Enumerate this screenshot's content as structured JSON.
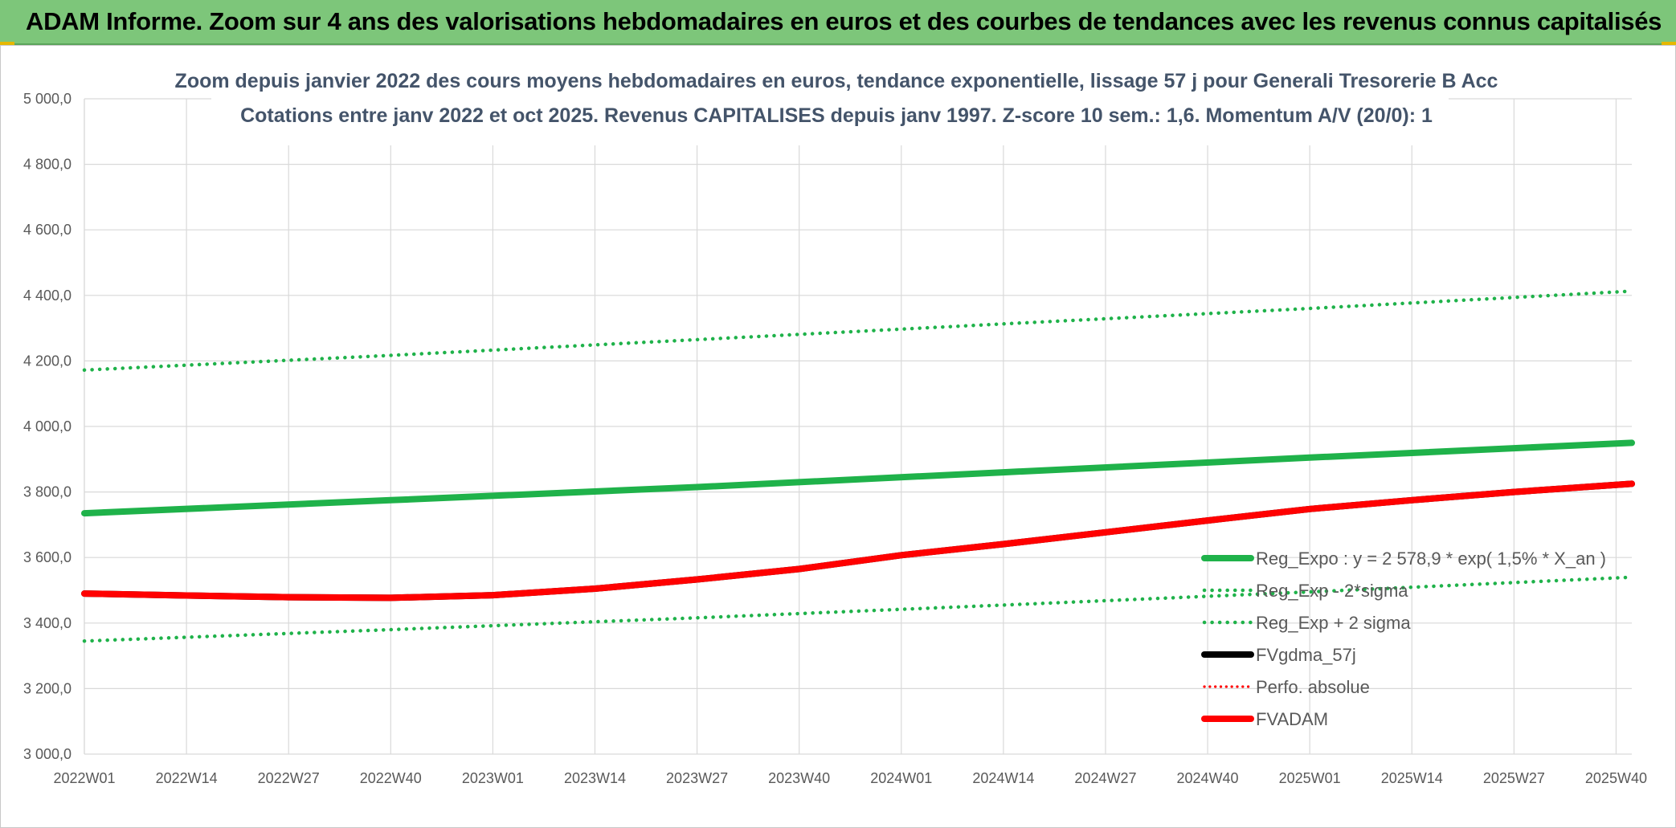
{
  "page": {
    "banner_title": "ADAM Informe. Zoom sur 4 ans des valorisations hebdomadaires en euros et des courbes de tendances avec les revenus connus capitalisés"
  },
  "chart_data": {
    "type": "line",
    "title": "Zoom depuis janvier 2022 des cours moyens hebdomadaires en euros, tendance exponentielle, lissage 57 j pour Generali Tresorerie B Acc",
    "subtitle": "Cotations entre janv 2022 et oct 2025. Revenus CAPITALISES depuis janv 1997. Z-score 10 sem.: 1,6. Momentum A/V (20/0): 1",
    "xlabel": "",
    "ylabel": "",
    "ylim": [
      3000,
      5000
    ],
    "yticks": [
      3000,
      3200,
      3400,
      3600,
      3800,
      4000,
      4200,
      4400,
      4600,
      4800,
      5000
    ],
    "ytick_labels": [
      "3 000,0",
      "3 200,0",
      "3 400,0",
      "3 600,0",
      "3 800,0",
      "4 000,0",
      "4 200,0",
      "4 400,0",
      "4 600,0",
      "4 800,0",
      "5 000,0"
    ],
    "x_range": [
      "2022W01",
      "2025W42"
    ],
    "x_ticks": [
      "2022W01",
      "2022W14",
      "2022W27",
      "2022W40",
      "2023W01",
      "2023W14",
      "2023W27",
      "2023W40",
      "2024W01",
      "2024W14",
      "2024W27",
      "2024W40",
      "2025W01",
      "2025W14",
      "2025W27",
      "2025W40"
    ],
    "grid": true,
    "legend_position": "bottom-right",
    "series": [
      {
        "name": "Reg_Expo : y = 2 578,9 * exp( 1,5% * X_an )",
        "color": "#1fb24a",
        "style": "solid",
        "width": "thick",
        "x": [
          "2022W01",
          "2022W40",
          "2023W27",
          "2024W14",
          "2025W01",
          "2025W42"
        ],
        "y": [
          3735,
          3775,
          3815,
          3860,
          3905,
          3950
        ]
      },
      {
        "name": "Reg_Exp - 2*sigma",
        "color": "#1fb24a",
        "style": "dotted",
        "width": "medium",
        "x": [
          "2022W01",
          "2022W40",
          "2023W27",
          "2024W14",
          "2025W01",
          "2025W42"
        ],
        "y": [
          3345,
          3380,
          3416,
          3455,
          3495,
          3540
        ]
      },
      {
        "name": "Reg_Exp + 2 sigma",
        "color": "#1fb24a",
        "style": "dotted",
        "width": "medium",
        "x": [
          "2022W01",
          "2022W40",
          "2023W27",
          "2024W14",
          "2025W01",
          "2025W42"
        ],
        "y": [
          4172,
          4217,
          4265,
          4313,
          4360,
          4413
        ]
      },
      {
        "name": "FVgdma_57j",
        "color": "#000000",
        "style": "solid",
        "width": "thick",
        "x": [
          "2022W01",
          "2022W14",
          "2022W27",
          "2022W40",
          "2023W01",
          "2023W14",
          "2023W27",
          "2023W40",
          "2024W01",
          "2024W14",
          "2024W27",
          "2024W40",
          "2025W01",
          "2025W14",
          "2025W27",
          "2025W42"
        ],
        "y": [
          3490,
          3484,
          3479,
          3477,
          3485,
          3505,
          3533,
          3565,
          3607,
          3641,
          3677,
          3713,
          3748,
          3775,
          3800,
          3825
        ]
      },
      {
        "name": "Perfo. absolue",
        "color": "#ff0000",
        "style": "dotted",
        "width": "thin",
        "x": [],
        "y": []
      },
      {
        "name": "FVADAM",
        "color": "#ff0000",
        "style": "solid",
        "width": "thick",
        "x": [
          "2022W01",
          "2022W14",
          "2022W27",
          "2022W40",
          "2023W01",
          "2023W14",
          "2023W27",
          "2023W40",
          "2024W01",
          "2024W14",
          "2024W27",
          "2024W40",
          "2025W01",
          "2025W14",
          "2025W27",
          "2025W42"
        ],
        "y": [
          3490,
          3484,
          3479,
          3477,
          3485,
          3505,
          3533,
          3565,
          3607,
          3641,
          3677,
          3713,
          3748,
          3775,
          3800,
          3825
        ]
      }
    ]
  }
}
